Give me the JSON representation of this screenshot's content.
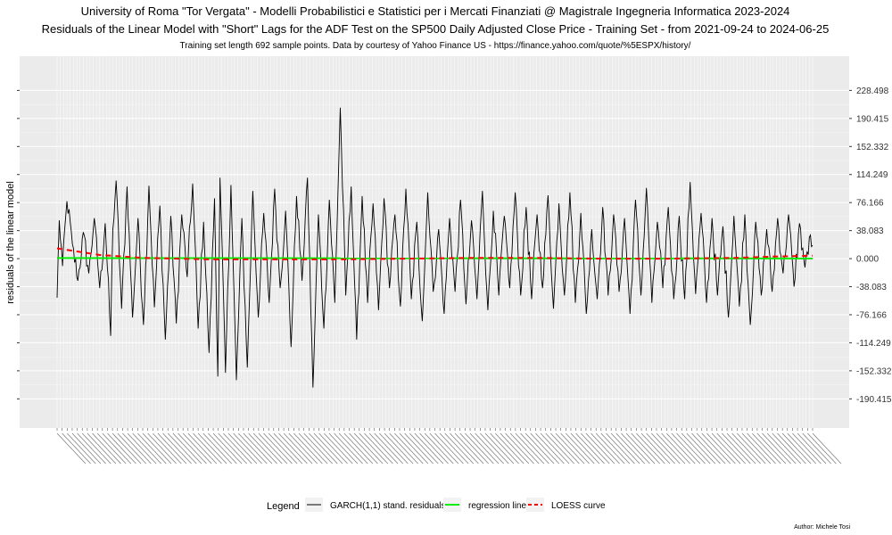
{
  "chart_data": {
    "type": "line",
    "title": "University of Roma \"Tor Vergata\" - Modelli Probabilistici e Statistici per i Mercati Finanziati @ Magistrale Ingegneria Informatica 2023-2024",
    "subtitle": "Residuals of the Linear Model with \"Short\" Lags for the ADF Test on the SP500 Daily Adjusted Close Price - Training Set - from 2021-09-24 to 2024-06-25",
    "caption_top": "Training set length 692 sample points. Data by courtesy of Yahoo Finance US - https://finance.yahoo.com/quote/%5ESPX/history/",
    "ylabel": "residuals of the linear model",
    "xlabel": "",
    "y_ticks": [
      228.498,
      190.415,
      152.332,
      114.249,
      76.166,
      38.083,
      0.0,
      -38.083,
      -76.166,
      -114.249,
      -152.332,
      -190.415
    ],
    "y_tick_labels": [
      "228.498",
      "190.415",
      "152.332",
      "114.249",
      "76.166",
      "38.083",
      "0.000",
      "-38.083",
      "-76.166",
      "-114.249",
      "-152.332",
      "-190.415"
    ],
    "ylim": [
      -230,
      275
    ],
    "x_range": [
      1,
      692
    ],
    "grid": true,
    "legend_position": "bottom",
    "legend": {
      "title": "Legend",
      "entries": [
        {
          "label": "GARCH(1,1) stand. residuals",
          "color": "#000000",
          "style": "solid"
        },
        {
          "label": "regression line",
          "color": "#00ee00",
          "style": "solid"
        },
        {
          "label": "LOESS curve",
          "color": "#ff0000",
          "style": "dashed"
        }
      ]
    },
    "series": [
      {
        "name": "GARCH(1,1) stand. residuals",
        "color": "#000000",
        "anchors_x": [
          1,
          3,
          6,
          10,
          15,
          20,
          25,
          30,
          35,
          40,
          45,
          50,
          52,
          55,
          60,
          65,
          70,
          75,
          80,
          85,
          90,
          95,
          100,
          105,
          110,
          115,
          120,
          125,
          130,
          135,
          140,
          145,
          148,
          150,
          155,
          160,
          165,
          170,
          175,
          180,
          185,
          190,
          195,
          200,
          205,
          210,
          215,
          220,
          225,
          230,
          235,
          240,
          245,
          250,
          255,
          260,
          265,
          270,
          275,
          280,
          285,
          290,
          295,
          300,
          305,
          310,
          315,
          320,
          325,
          330,
          335,
          340,
          345,
          350,
          355,
          360,
          365,
          370,
          375,
          380,
          385,
          390,
          395,
          400,
          405,
          410,
          415,
          420,
          425,
          430,
          435,
          440,
          445,
          450,
          455,
          460,
          465,
          470,
          475,
          480,
          485,
          490,
          495,
          500,
          505,
          510,
          515,
          520,
          525,
          530,
          535,
          540,
          545,
          550,
          555,
          560,
          565,
          570,
          575,
          580,
          585,
          590,
          595,
          600,
          605,
          610,
          615,
          620,
          625,
          630,
          635,
          640,
          645,
          650,
          655,
          660,
          665,
          670,
          675,
          680,
          685,
          690,
          692
        ],
        "anchors_y": [
          -53,
          52,
          -10,
          78,
          20,
          -30,
          36,
          -20,
          55,
          -40,
          48,
          -105,
          40,
          106,
          -68,
          98,
          -80,
          55,
          -90,
          99,
          -66,
          72,
          -110,
          58,
          -88,
          60,
          -25,
          102,
          -95,
          50,
          -128,
          82,
          -160,
          110,
          -155,
          100,
          -165,
          55,
          -148,
          92,
          -80,
          62,
          -60,
          95,
          -40,
          65,
          -120,
          85,
          -30,
          110,
          -175,
          60,
          -95,
          80,
          -60,
          205,
          -50,
          98,
          -110,
          85,
          -60,
          75,
          -70,
          82,
          -40,
          60,
          -65,
          95,
          -55,
          50,
          -85,
          90,
          -45,
          40,
          -75,
          55,
          -45,
          80,
          -62,
          52,
          -55,
          92,
          -70,
          65,
          -50,
          58,
          -40,
          90,
          -50,
          70,
          -55,
          60,
          -40,
          86,
          -68,
          75,
          -50,
          90,
          -60,
          62,
          -75,
          40,
          -55,
          70,
          -50,
          60,
          -45,
          55,
          -75,
          80,
          -50,
          96,
          -60,
          50,
          -40,
          70,
          -55,
          58,
          -55,
          104,
          -48,
          62,
          -60,
          55,
          -50,
          44,
          -80,
          58,
          -65,
          60,
          -90,
          50,
          -50,
          40,
          -45,
          55,
          -20,
          60,
          -38,
          48,
          -12,
          32,
          18
        ]
      },
      {
        "name": "regression line",
        "color": "#00ee00",
        "x": [
          1,
          692
        ],
        "y": [
          0.8,
          0.3
        ]
      },
      {
        "name": "LOESS curve",
        "color": "#ff0000",
        "x": [
          1,
          40,
          80,
          140,
          200,
          260,
          320,
          380,
          440,
          500,
          560,
          620,
          660,
          692
        ],
        "y": [
          14,
          5,
          1,
          -1,
          -1,
          -1,
          0,
          1,
          1,
          0,
          0,
          1,
          3,
          4
        ]
      }
    ]
  },
  "author": "Author: Michele Tosi"
}
